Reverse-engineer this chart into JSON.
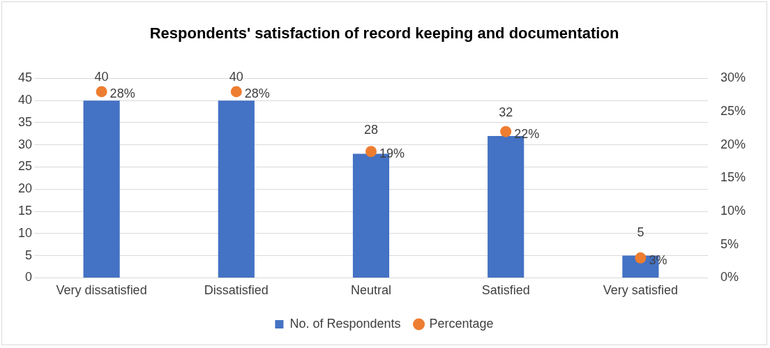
{
  "chart_data": {
    "type": "bar",
    "title": "Respondents' satisfaction of record keeping and documentation",
    "categories": [
      "Very dissatisfied",
      "Dissatisfied",
      "Neutral",
      "Satisfied",
      "Very satisfied"
    ],
    "series": [
      {
        "name": "No. of Respondents",
        "color": "#4472c4",
        "values": [
          40,
          40,
          28,
          32,
          5
        ],
        "value_labels": [
          "40",
          "40",
          "28",
          "32",
          "5"
        ]
      },
      {
        "name": "Percentage",
        "type": "scatter",
        "axis": "y2",
        "color": "#ed7d31",
        "values": [
          28,
          28,
          19,
          22,
          3
        ],
        "value_labels": [
          "28%",
          "28%",
          "19%",
          "22%",
          "3%"
        ]
      }
    ],
    "ylim": [
      0,
      45
    ],
    "yticks": [
      0,
      5,
      10,
      15,
      20,
      25,
      30,
      35,
      40,
      45
    ],
    "y2lim": [
      0,
      30
    ],
    "y2ticks": [
      {
        "value": 0,
        "label": "0%"
      },
      {
        "value": 5,
        "label": "5%"
      },
      {
        "value": 10,
        "label": "10%"
      },
      {
        "value": 15,
        "label": "15%"
      },
      {
        "value": 20,
        "label": "20%"
      },
      {
        "value": 25,
        "label": "25%"
      },
      {
        "value": 30,
        "label": "30%"
      }
    ],
    "grid": "y",
    "legend": "bottom",
    "marker": "circle"
  }
}
